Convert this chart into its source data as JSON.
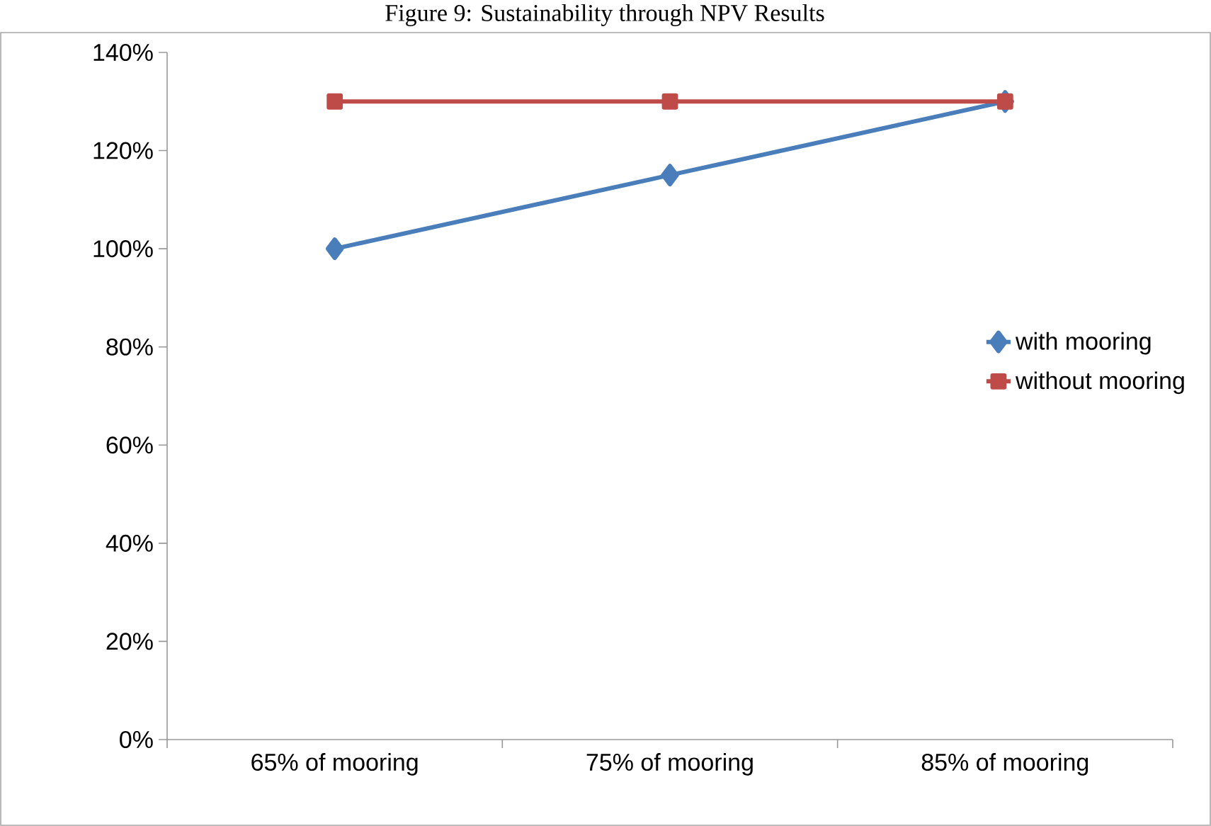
{
  "chart_data": {
    "type": "line",
    "title": "Figure 9: Sustainability through NPV Results",
    "categories": [
      "65% of mooring",
      "75% of mooring",
      "85% of mooring"
    ],
    "series": [
      {
        "name": "with mooring",
        "color": "#4a7ebb",
        "marker": "diamond",
        "values": [
          100,
          115,
          130
        ]
      },
      {
        "name": "without mooring",
        "color": "#be4b48",
        "marker": "square",
        "values": [
          130,
          130,
          130
        ]
      }
    ],
    "ylim": [
      0,
      140
    ],
    "yticks": [
      {
        "value": 0,
        "label": "0%"
      },
      {
        "value": 20,
        "label": "20%"
      },
      {
        "value": 40,
        "label": "40%"
      },
      {
        "value": 60,
        "label": "60%"
      },
      {
        "value": 80,
        "label": "80%"
      },
      {
        "value": 100,
        "label": "100%"
      },
      {
        "value": 120,
        "label": "120%"
      },
      {
        "value": 140,
        "label": "140%"
      }
    ],
    "grid": false,
    "legend": "right",
    "line_style": "solid"
  }
}
